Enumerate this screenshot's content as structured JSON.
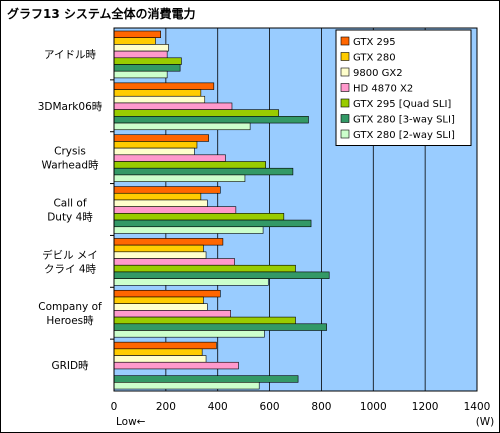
{
  "title": "グラフ13 システム全体の消費電力",
  "chart_data": {
    "type": "bar",
    "orientation": "horizontal",
    "title": "グラフ13 システム全体の消費電力",
    "categories": [
      [
        "アイドル時"
      ],
      [
        "3DMark06時"
      ],
      [
        "Crysis",
        "Warhead時"
      ],
      [
        "Call of",
        "Duty 4時"
      ],
      [
        "デビル メイ",
        "クライ 4時"
      ],
      [
        "Company of",
        "Heroes時"
      ],
      [
        "GRID時"
      ]
    ],
    "series": [
      {
        "name": "GTX 295",
        "color": "#ff6600",
        "values": [
          180,
          385,
          365,
          410,
          420,
          410,
          395
        ]
      },
      {
        "name": "GTX 280",
        "color": "#ffcc00",
        "values": [
          160,
          335,
          320,
          335,
          345,
          345,
          340
        ]
      },
      {
        "name": "9800 GX2",
        "color": "#ffffcc",
        "values": [
          210,
          350,
          310,
          360,
          355,
          360,
          355
        ]
      },
      {
        "name": "HD 4870 X2",
        "color": "#ff99cc",
        "values": [
          205,
          455,
          430,
          470,
          465,
          450,
          480
        ]
      },
      {
        "name": "GTX 295 [Quad SLI]",
        "color": "#99cc00",
        "values": [
          260,
          635,
          585,
          655,
          700,
          700,
          null
        ]
      },
      {
        "name": "GTX 280 [3-way SLI]",
        "color": "#339966",
        "values": [
          255,
          750,
          690,
          760,
          830,
          820,
          710
        ]
      },
      {
        "name": "GTX 280 [2-way SLI]",
        "color": "#ccffcc",
        "values": [
          205,
          525,
          505,
          575,
          595,
          580,
          560
        ]
      }
    ],
    "x_ticks": [
      "0",
      "200",
      "400",
      "600",
      "800",
      "1000",
      "1200",
      "1400"
    ],
    "xlim": [
      0,
      1400
    ],
    "unit_label": "(W)",
    "low_label": "Low←",
    "legend_position": "top-right",
    "grid": true,
    "plot_background": "#99ccff"
  }
}
